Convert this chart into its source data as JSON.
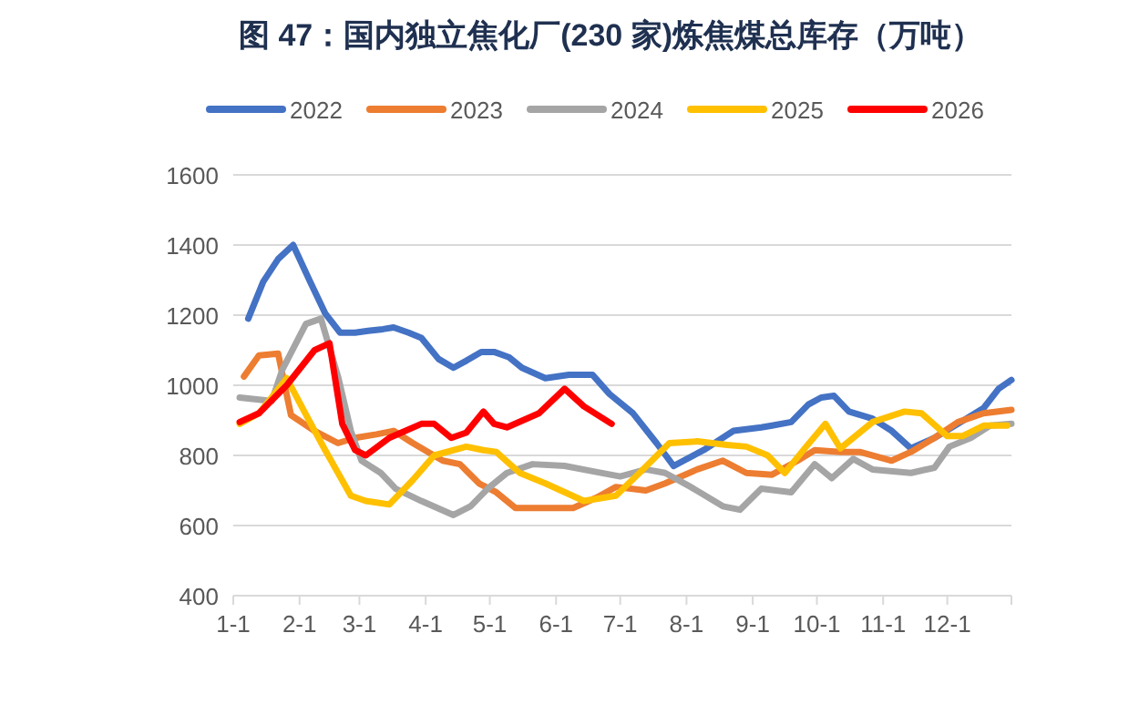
{
  "chart_data": {
    "type": "line",
    "title": "图 47：国内独立焦化厂(230 家)炼焦煤总库存（万吨）",
    "xlim": [
      "--01-01",
      "--12-31"
    ],
    "ylim": [
      400,
      1600
    ],
    "xticks": [
      {
        "value": "--01-01",
        "label": "1-1"
      },
      {
        "value": "--02-01",
        "label": "2-1"
      },
      {
        "value": "--03-01",
        "label": "3-1"
      },
      {
        "value": "--04-01",
        "label": "4-1"
      },
      {
        "value": "--05-01",
        "label": "5-1"
      },
      {
        "value": "--06-01",
        "label": "6-1"
      },
      {
        "value": "--07-01",
        "label": "7-1"
      },
      {
        "value": "--08-01",
        "label": "8-1"
      },
      {
        "value": "--09-01",
        "label": "9-1"
      },
      {
        "value": "--10-01",
        "label": "10-1"
      },
      {
        "value": "--11-01",
        "label": "11-1"
      },
      {
        "value": "--12-01",
        "label": "12-1"
      },
      {
        "value": "--12-31",
        "label": null
      }
    ],
    "yticks": [
      400,
      600,
      800,
      1000,
      1200,
      1400,
      1600
    ],
    "grid": "y",
    "legend": "top",
    "line_style": "solid",
    "marker": "none",
    "series": [
      {
        "name": "2022",
        "color": "#4472c4",
        "x": [
          "--01-08",
          "--01-15",
          "--01-22",
          "--01-29",
          "--02-06",
          "--02-13",
          "--02-20",
          "--02-27",
          "--03-05",
          "--03-12",
          "--03-17",
          "--03-24",
          "--03-30",
          "--04-07",
          "--04-14",
          "--04-20",
          "--04-27",
          "--05-03",
          "--05-10",
          "--05-16",
          "--05-27",
          "--06-07",
          "--06-18",
          "--06-26",
          "--07-07",
          "--07-18",
          "--07-26",
          "--08-09",
          "--08-23",
          "--09-05",
          "--09-10",
          "--09-19",
          "--09-27",
          "--10-03",
          "--10-09",
          "--10-16",
          "--10-27",
          "--11-05",
          "--11-14",
          "--11-25",
          "--12-06",
          "--12-18",
          "--12-25",
          "--12-31"
        ],
        "values": [
          1190,
          1295,
          1360,
          1400,
          1295,
          1205,
          1150,
          1150,
          1155,
          1160,
          1165,
          1150,
          1135,
          1075,
          1050,
          1070,
          1095,
          1095,
          1080,
          1050,
          1020,
          1030,
          1030,
          975,
          920,
          835,
          770,
          815,
          870,
          880,
          885,
          895,
          945,
          965,
          970,
          925,
          905,
          870,
          820,
          850,
          890,
          935,
          990,
          1015
        ]
      },
      {
        "name": "2023",
        "color": "#ed7d31",
        "x": [
          "--01-06",
          "--01-13",
          "--01-22",
          "--01-28",
          "--02-08",
          "--02-19",
          "--02-27",
          "--03-09",
          "--03-17",
          "--03-26",
          "--04-09",
          "--04-17",
          "--04-26",
          "--05-04",
          "--05-13",
          "--05-27",
          "--06-09",
          "--06-20",
          "--06-29",
          "--07-13",
          "--07-22",
          "--08-06",
          "--08-18",
          "--08-29",
          "--09-10",
          "--09-22",
          "--09-30",
          "--10-12",
          "--10-21",
          "--11-05",
          "--11-14",
          "--11-25",
          "--12-06",
          "--12-18",
          "--12-31"
        ],
        "values": [
          1025,
          1085,
          1090,
          915,
          870,
          835,
          850,
          860,
          870,
          835,
          785,
          775,
          720,
          695,
          650,
          650,
          650,
          680,
          710,
          700,
          720,
          760,
          785,
          750,
          745,
          785,
          815,
          810,
          810,
          785,
          810,
          850,
          895,
          920,
          930
        ]
      },
      {
        "name": "2024",
        "color": "#a5a5a5",
        "x": [
          "--01-04",
          "--01-19",
          "--01-24",
          "--02-04",
          "--02-11",
          "--02-19",
          "--02-25",
          "--03-02",
          "--03-11",
          "--03-18",
          "--03-30",
          "--04-14",
          "--04-22",
          "--04-30",
          "--05-09",
          "--05-21",
          "--06-05",
          "--06-18",
          "--07-01",
          "--07-13",
          "--07-22",
          "--08-03",
          "--08-18",
          "--08-26",
          "--09-05",
          "--09-19",
          "--09-30",
          "--10-08",
          "--10-18",
          "--10-27",
          "--11-14",
          "--11-25",
          "--12-02",
          "--12-12",
          "--12-21",
          "--12-31"
        ],
        "values": [
          965,
          955,
          1045,
          1175,
          1190,
          1025,
          870,
          785,
          750,
          705,
          670,
          630,
          655,
          705,
          750,
          775,
          770,
          755,
          740,
          760,
          750,
          710,
          655,
          645,
          705,
          695,
          775,
          735,
          790,
          760,
          750,
          765,
          825,
          850,
          885,
          890
        ]
      },
      {
        "name": "2025",
        "color": "#ffc000",
        "x": [
          "--01-04",
          "--01-13",
          "--01-26",
          "--02-05",
          "--02-13",
          "--02-25",
          "--03-04",
          "--03-15",
          "--03-26",
          "--04-05",
          "--04-20",
          "--04-28",
          "--05-04",
          "--05-15",
          "--05-27",
          "--06-14",
          "--06-29",
          "--07-10",
          "--07-24",
          "--08-06",
          "--08-20",
          "--08-29",
          "--09-08",
          "--09-16",
          "--09-26",
          "--10-05",
          "--10-12",
          "--10-27",
          "--11-11",
          "--11-19",
          "--12-01",
          "--12-08",
          "--12-18",
          "--12-29"
        ],
        "values": [
          890,
          920,
          1020,
          905,
          815,
          685,
          670,
          660,
          730,
          800,
          825,
          815,
          810,
          750,
          720,
          670,
          685,
          750,
          835,
          840,
          830,
          825,
          800,
          750,
          825,
          890,
          820,
          895,
          925,
          920,
          855,
          855,
          885,
          885
        ]
      },
      {
        "name": "2026",
        "color": "#ff0000",
        "x": [
          "--01-04",
          "--01-13",
          "--01-26",
          "--02-08",
          "--02-15",
          "--02-21",
          "--02-27",
          "--03-04",
          "--03-15",
          "--03-30",
          "--04-05",
          "--04-13",
          "--04-20",
          "--04-28",
          "--05-03",
          "--05-09",
          "--05-24",
          "--06-05",
          "--06-14",
          "--06-27"
        ],
        "values": [
          895,
          920,
          1000,
          1100,
          1120,
          890,
          815,
          800,
          850,
          890,
          890,
          850,
          865,
          925,
          890,
          880,
          920,
          990,
          940,
          890
        ]
      }
    ]
  }
}
